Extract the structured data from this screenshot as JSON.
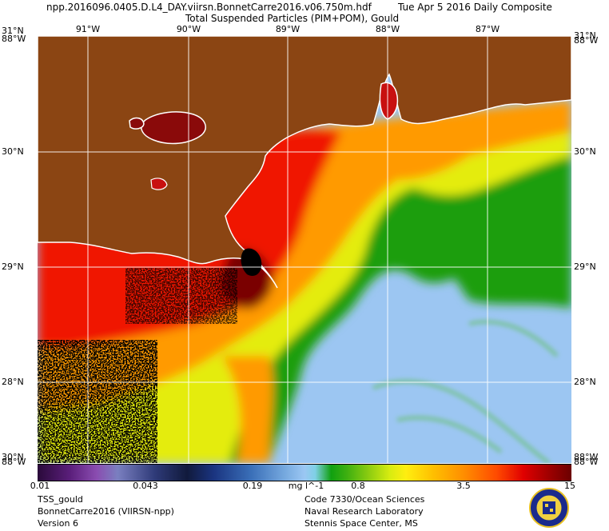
{
  "header": {
    "file_title": "npp.2016096.0405.D.L4_DAY.viirsn.BonnetCarre2016.v06.750m.hdf",
    "date": "Tue Apr  5 2016 Daily Composite",
    "product_title": "Total Suspended Particles (PIM+POM), Gould"
  },
  "axes": {
    "top_lon_labels": [
      "91°W",
      "90°W",
      "89°W",
      "88°W",
      "87°W"
    ],
    "corner_top_left": "31°N",
    "corner_top_left_overlap": "88°W",
    "corner_top_right": "31°N",
    "corner_top_right_overlap": "88°W",
    "lat_labels": [
      "30°N",
      "29°N",
      "28°N"
    ],
    "corner_bottom_left": "30°N",
    "corner_bottom_left_overlap": "88°W",
    "corner_bottom_right": "88°W",
    "corner_bottom_right_overlap": "88°W"
  },
  "colorbar": {
    "labels": [
      "0.01",
      "0.043",
      "0.19",
      "mg l^-1",
      "0.8",
      "3.5",
      "15"
    ]
  },
  "footer": {
    "left": [
      "TSS_gould",
      "BonnetCarre2016 (VIIRSN-npp)",
      "Version 6"
    ],
    "right": [
      "Code 7330/Ocean Sciences",
      "Naval Research Laboratory",
      "Stennis Space Center, MS"
    ]
  },
  "colors": {
    "land": "#8b4513",
    "coastline": "#ffffff",
    "clear_water": "#9cc6f2",
    "green": "#1e9e10",
    "yellow": "#eaf010",
    "orange": "#ff9a00",
    "red": "#f01800",
    "dark_red": "#7a0000",
    "no_data": "#000000"
  }
}
